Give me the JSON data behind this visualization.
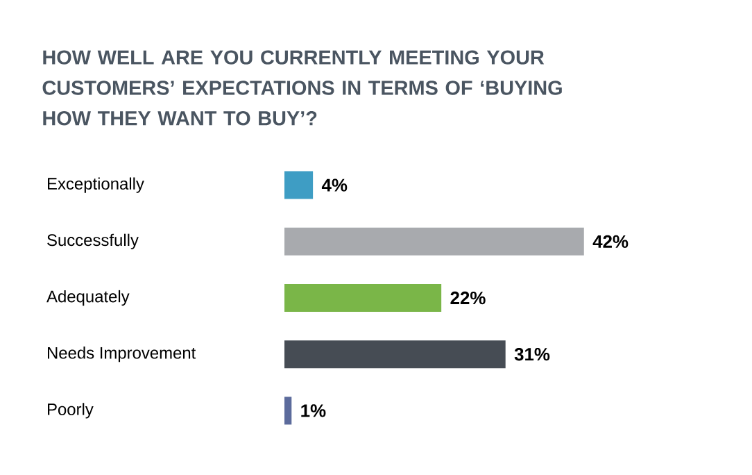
{
  "chart_data": {
    "type": "bar",
    "orientation": "horizontal",
    "title": "HOW WELL ARE YOU CURRENTLY MEETING YOUR CUSTOMERS’ EXPECTATIONS IN TERMS OF ‘BUYING HOW THEY WANT TO BUY’?",
    "categories": [
      "Exceptionally",
      "Successfully",
      "Adequately",
      "Needs Improvement",
      "Poorly"
    ],
    "values": [
      4,
      42,
      22,
      31,
      1
    ],
    "value_labels": [
      "4%",
      "42%",
      "22%",
      "31%",
      "1%"
    ],
    "colors": [
      "#3e9dc4",
      "#a8aaae",
      "#7ab648",
      "#464c54",
      "#5c6b9c"
    ]
  }
}
